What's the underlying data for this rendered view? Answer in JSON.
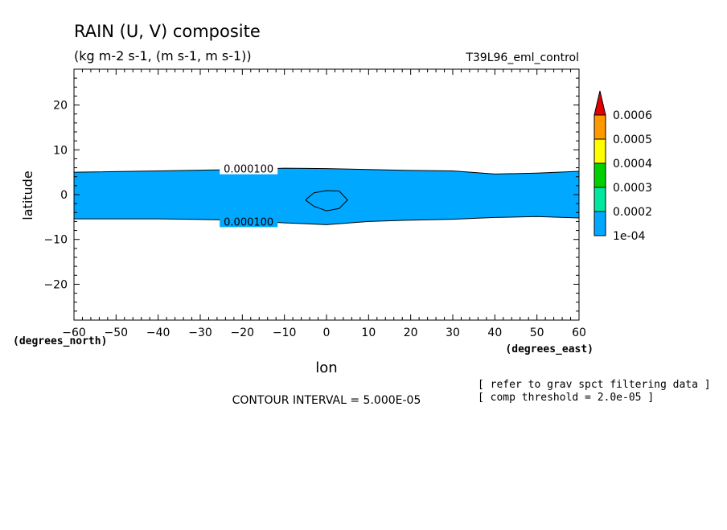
{
  "chart_data": {
    "type": "contour",
    "title": "RAIN (U, V) composite",
    "units": "(kg m-2 s-1, (m s-1, m s-1))",
    "experiment": "T39L96_eml_control",
    "xlabel": "lon",
    "ylabel": "latitude",
    "x_units": "(degrees_east)",
    "y_units": "(degrees_north)",
    "xlim": [
      -60,
      60
    ],
    "ylim": [
      -28,
      28
    ],
    "x_ticks": [
      -60,
      -50,
      -40,
      -30,
      -20,
      -10,
      0,
      10,
      20,
      30,
      40,
      50,
      60
    ],
    "y_ticks": [
      -20,
      -10,
      0,
      10,
      20
    ],
    "fill_color": "#00a8ff",
    "north_edge": {
      "x": [
        -60,
        -40,
        -20,
        -10,
        0,
        10,
        20,
        30,
        40,
        50,
        60
      ],
      "y": [
        5.0,
        5.3,
        5.6,
        5.9,
        5.8,
        5.6,
        5.4,
        5.3,
        4.6,
        4.8,
        5.2
      ]
    },
    "south_edge": {
      "x": [
        -60,
        -40,
        -20,
        -10,
        0,
        10,
        20,
        30,
        40,
        50,
        60
      ],
      "y": [
        -5.4,
        -5.4,
        -5.7,
        -6.3,
        -6.7,
        -6.0,
        -5.7,
        -5.5,
        -5.1,
        -4.9,
        -5.2
      ]
    },
    "inner_contour": {
      "x": [
        -5,
        -3,
        0,
        3,
        5,
        3,
        0,
        -3,
        -5
      ],
      "y": [
        -1.2,
        0.4,
        0.9,
        0.8,
        -1.2,
        -3.1,
        -3.6,
        -2.6,
        -1.2
      ]
    },
    "contour_labels": [
      {
        "text": "0.000100",
        "x": -18.5,
        "y": 5.8
      },
      {
        "text": "0.000100",
        "x": -18.5,
        "y": -6.0
      }
    ],
    "colorbar": {
      "labels": [
        "0.0006",
        "0.0005",
        "0.0004",
        "0.0003",
        "0.0002",
        "1e-04"
      ],
      "colors": [
        "#e00000",
        "#ff9900",
        "#ffff00",
        "#00d000",
        "#00e8a0",
        "#00a8ff"
      ]
    },
    "contour_interval": "CONTOUR INTERVAL = 5.000E-05",
    "notes": [
      "[ refer to grav spct filtering data ]",
      "[ comp threshold = 2.0e-05 ]"
    ]
  }
}
